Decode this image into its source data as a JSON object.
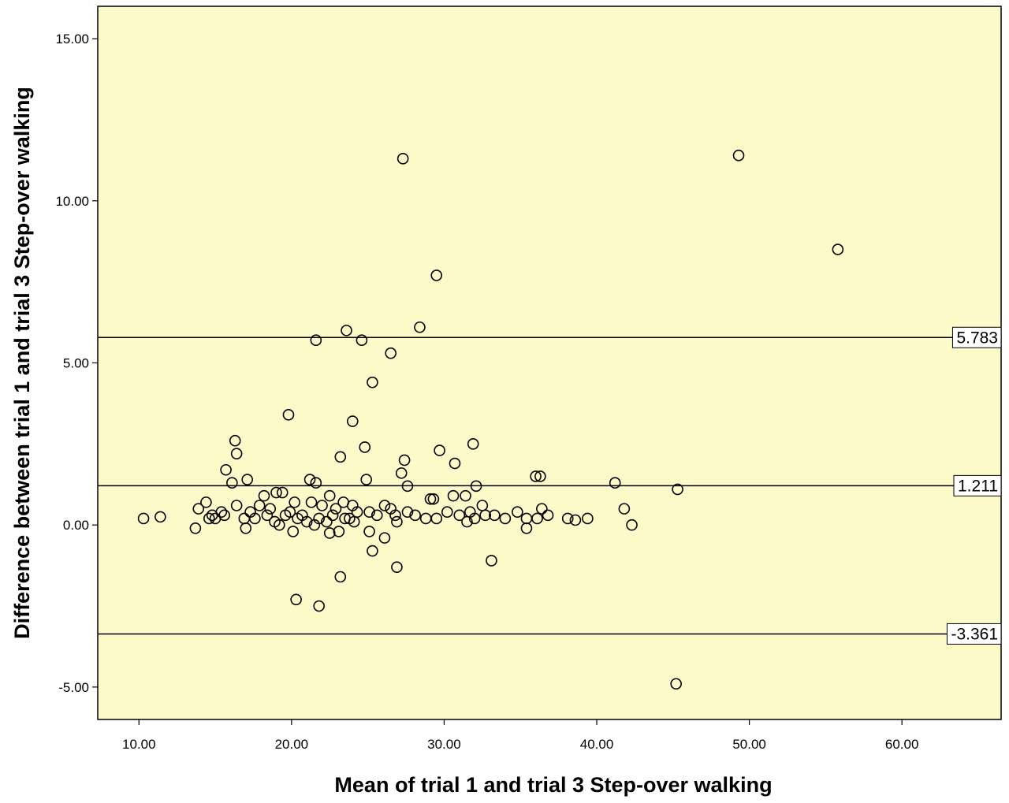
{
  "chart_data": {
    "type": "scatter",
    "title": "",
    "xlabel": "Mean of trial 1 and trial 3 Step-over walking",
    "ylabel": "Difference between trial 1 and trial 3 Step-over walking",
    "xlim": [
      7.3,
      66.5
    ],
    "ylim": [
      -6.0,
      16.0
    ],
    "xticks": [
      10,
      20,
      30,
      40,
      50,
      60
    ],
    "xtick_labels": [
      "10.00",
      "20.00",
      "30.00",
      "40.00",
      "50.00",
      "60.00"
    ],
    "yticks": [
      -5,
      0,
      5,
      10,
      15
    ],
    "ytick_labels": [
      "-5.00",
      "0.00",
      "5.00",
      "10.00",
      "15.00"
    ],
    "grid": false,
    "legend": "none",
    "background_color": "#fcfac9",
    "marker_color": "#000000",
    "reference_lines": [
      {
        "value": 5.783,
        "label": "5.783"
      },
      {
        "value": 1.211,
        "label": "1.211"
      },
      {
        "value": -3.361,
        "label": "-3.361"
      }
    ],
    "points": [
      [
        27.3,
        11.3
      ],
      [
        49.3,
        11.4
      ],
      [
        55.8,
        8.5
      ],
      [
        29.5,
        7.7
      ],
      [
        23.6,
        6.0
      ],
      [
        28.4,
        6.1
      ],
      [
        21.6,
        5.7
      ],
      [
        24.6,
        5.7
      ],
      [
        26.5,
        5.3
      ],
      [
        25.3,
        4.4
      ],
      [
        19.8,
        3.4
      ],
      [
        24.0,
        3.2
      ],
      [
        16.3,
        2.6
      ],
      [
        16.4,
        2.2
      ],
      [
        24.8,
        2.4
      ],
      [
        31.9,
        2.5
      ],
      [
        23.2,
        2.1
      ],
      [
        27.4,
        2.0
      ],
      [
        29.7,
        2.3
      ],
      [
        30.7,
        1.9
      ],
      [
        15.7,
        1.7
      ],
      [
        27.2,
        1.6
      ],
      [
        36.0,
        1.5
      ],
      [
        36.3,
        1.5
      ],
      [
        16.1,
        1.3
      ],
      [
        17.1,
        1.4
      ],
      [
        21.2,
        1.4
      ],
      [
        21.6,
        1.3
      ],
      [
        24.9,
        1.4
      ],
      [
        41.2,
        1.3
      ],
      [
        27.6,
        1.2
      ],
      [
        32.1,
        1.2
      ],
      [
        45.3,
        1.1
      ],
      [
        19.0,
        1.0
      ],
      [
        19.4,
        1.0
      ],
      [
        18.2,
        0.9
      ],
      [
        22.5,
        0.9
      ],
      [
        29.1,
        0.8
      ],
      [
        29.3,
        0.8
      ],
      [
        30.6,
        0.9
      ],
      [
        31.4,
        0.9
      ],
      [
        20.2,
        0.7
      ],
      [
        21.3,
        0.7
      ],
      [
        22.0,
        0.6
      ],
      [
        23.4,
        0.7
      ],
      [
        24.0,
        0.6
      ],
      [
        26.1,
        0.6
      ],
      [
        26.5,
        0.5
      ],
      [
        32.5,
        0.6
      ],
      [
        14.4,
        0.7
      ],
      [
        16.4,
        0.6
      ],
      [
        17.9,
        0.6
      ],
      [
        36.4,
        0.5
      ],
      [
        41.8,
        0.5
      ],
      [
        13.9,
        0.5
      ],
      [
        15.4,
        0.4
      ],
      [
        17.3,
        0.4
      ],
      [
        18.6,
        0.5
      ],
      [
        19.9,
        0.4
      ],
      [
        22.9,
        0.5
      ],
      [
        24.3,
        0.4
      ],
      [
        25.1,
        0.4
      ],
      [
        27.6,
        0.4
      ],
      [
        30.2,
        0.4
      ],
      [
        31.7,
        0.4
      ],
      [
        34.8,
        0.4
      ],
      [
        14.8,
        0.3
      ],
      [
        15.6,
        0.3
      ],
      [
        16.9,
        0.2
      ],
      [
        18.4,
        0.3
      ],
      [
        19.6,
        0.3
      ],
      [
        20.7,
        0.3
      ],
      [
        21.8,
        0.2
      ],
      [
        22.7,
        0.3
      ],
      [
        23.8,
        0.2
      ],
      [
        25.6,
        0.3
      ],
      [
        26.8,
        0.3
      ],
      [
        28.1,
        0.3
      ],
      [
        29.5,
        0.2
      ],
      [
        31.0,
        0.3
      ],
      [
        32.7,
        0.3
      ],
      [
        33.3,
        0.3
      ],
      [
        36.8,
        0.3
      ],
      [
        10.3,
        0.2
      ],
      [
        11.4,
        0.25
      ],
      [
        15.0,
        0.2
      ],
      [
        17.6,
        0.2
      ],
      [
        20.4,
        0.2
      ],
      [
        23.5,
        0.2
      ],
      [
        28.8,
        0.2
      ],
      [
        32.0,
        0.2
      ],
      [
        34.0,
        0.2
      ],
      [
        35.4,
        0.2
      ],
      [
        36.1,
        0.2
      ],
      [
        38.1,
        0.2
      ],
      [
        38.6,
        0.15
      ],
      [
        39.4,
        0.2
      ],
      [
        14.6,
        0.2
      ],
      [
        18.9,
        0.1
      ],
      [
        21.0,
        0.1
      ],
      [
        22.3,
        0.1
      ],
      [
        24.1,
        0.1
      ],
      [
        26.9,
        0.1
      ],
      [
        31.5,
        0.1
      ],
      [
        42.3,
        0.0
      ],
      [
        19.2,
        0.0
      ],
      [
        21.5,
        0.0
      ],
      [
        13.7,
        -0.1
      ],
      [
        17.0,
        -0.1
      ],
      [
        20.1,
        -0.2
      ],
      [
        22.5,
        -0.25
      ],
      [
        25.1,
        -0.2
      ],
      [
        26.1,
        -0.4
      ],
      [
        23.1,
        -0.2
      ],
      [
        35.4,
        -0.1
      ],
      [
        25.3,
        -0.8
      ],
      [
        26.9,
        -1.3
      ],
      [
        33.1,
        -1.1
      ],
      [
        23.2,
        -1.6
      ],
      [
        20.3,
        -2.3
      ],
      [
        21.8,
        -2.5
      ],
      [
        45.2,
        -4.9
      ]
    ]
  }
}
